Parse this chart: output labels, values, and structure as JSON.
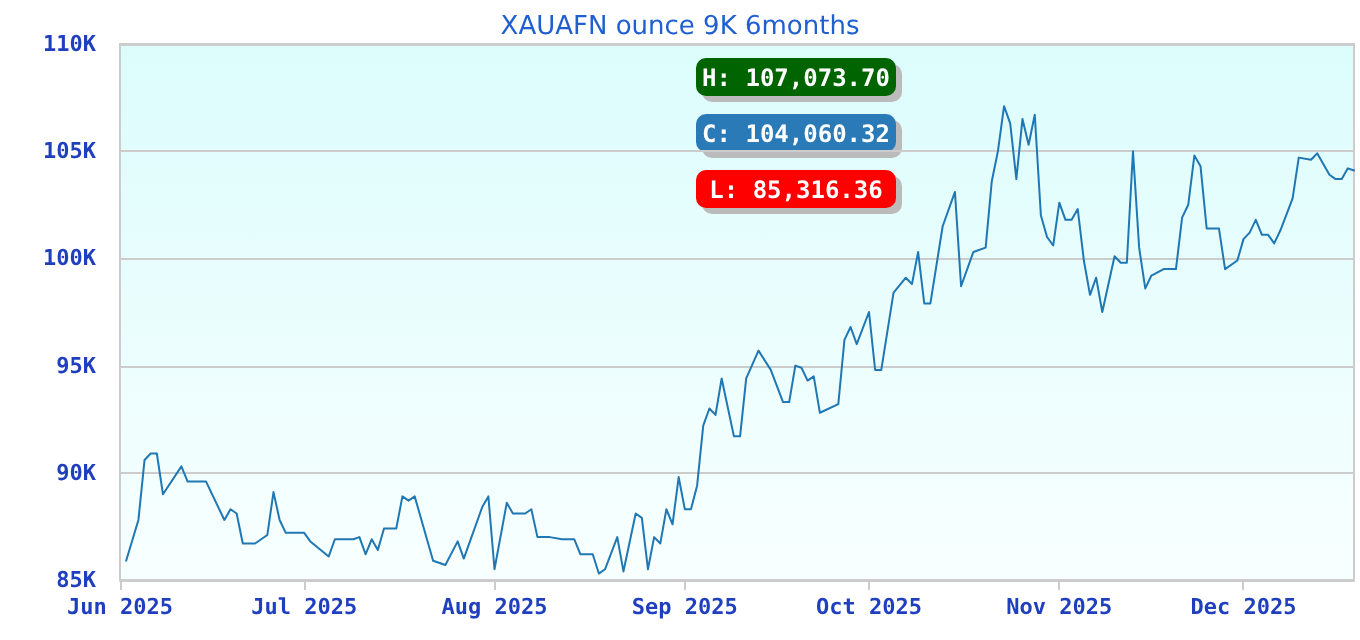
{
  "chart_data": {
    "type": "line",
    "title": "XAUAFN ounce 9K 6months",
    "annotations": [
      "H: 107,073.70",
      "C: 104,060.32",
      "L: 85,316.36"
    ],
    "xlim": [
      "2025-06-01",
      "2025-12-19"
    ],
    "xticks": [
      {
        "value": "2025-06-01",
        "label": "Jun 2025"
      },
      {
        "value": "2025-07-01",
        "label": "Jul 2025"
      },
      {
        "value": "2025-08-01",
        "label": "Aug 2025"
      },
      {
        "value": "2025-09-01",
        "label": "Sep 2025"
      },
      {
        "value": "2025-10-01",
        "label": "Oct 2025"
      },
      {
        "value": "2025-11-01",
        "label": "Nov 2025"
      },
      {
        "value": "2025-12-01",
        "label": "Dec 2025"
      }
    ],
    "ylim": [
      85000,
      110000
    ],
    "yticks": [
      {
        "value": 85000,
        "label": "85K"
      },
      {
        "value": 90000,
        "label": "90K"
      },
      {
        "value": 95000,
        "label": "95K"
      },
      {
        "value": 100000,
        "label": "100K"
      },
      {
        "value": 105000,
        "label": "105K"
      },
      {
        "value": 110000,
        "label": "110K"
      }
    ],
    "grid": "y",
    "marker": "none",
    "line_style": "solid",
    "x": [
      "2025-06-02",
      "2025-06-04",
      "2025-06-05",
      "2025-06-06",
      "2025-06-07",
      "2025-06-08",
      "2025-06-11",
      "2025-06-12",
      "2025-06-15",
      "2025-06-18",
      "2025-06-19",
      "2025-06-20",
      "2025-06-21",
      "2025-06-23",
      "2025-06-25",
      "2025-06-26",
      "2025-06-27",
      "2025-06-28",
      "2025-07-01",
      "2025-07-02",
      "2025-07-05",
      "2025-07-06",
      "2025-07-09",
      "2025-07-10",
      "2025-07-11",
      "2025-07-12",
      "2025-07-13",
      "2025-07-14",
      "2025-07-16",
      "2025-07-17",
      "2025-07-18",
      "2025-07-19",
      "2025-07-22",
      "2025-07-24",
      "2025-07-26",
      "2025-07-27",
      "2025-07-30",
      "2025-07-31",
      "2025-08-01",
      "2025-08-03",
      "2025-08-04",
      "2025-08-06",
      "2025-08-07",
      "2025-08-08",
      "2025-08-10",
      "2025-08-12",
      "2025-08-14",
      "2025-08-15",
      "2025-08-17",
      "2025-08-18",
      "2025-08-19",
      "2025-08-21",
      "2025-08-22",
      "2025-08-24",
      "2025-08-25",
      "2025-08-26",
      "2025-08-27",
      "2025-08-28",
      "2025-08-29",
      "2025-08-30",
      "2025-08-31",
      "2025-09-01",
      "2025-09-02",
      "2025-09-03",
      "2025-09-04",
      "2025-09-05",
      "2025-09-06",
      "2025-09-07",
      "2025-09-09",
      "2025-09-10",
      "2025-09-11",
      "2025-09-13",
      "2025-09-15",
      "2025-09-17",
      "2025-09-18",
      "2025-09-19",
      "2025-09-20",
      "2025-09-21",
      "2025-09-22",
      "2025-09-23",
      "2025-09-26",
      "2025-09-27",
      "2025-09-28",
      "2025-09-29",
      "2025-10-01",
      "2025-10-02",
      "2025-10-03",
      "2025-10-05",
      "2025-10-07",
      "2025-10-08",
      "2025-10-09",
      "2025-10-10",
      "2025-10-11",
      "2025-10-13",
      "2025-10-15",
      "2025-10-16",
      "2025-10-18",
      "2025-10-20",
      "2025-10-21",
      "2025-10-22",
      "2025-10-23",
      "2025-10-24",
      "2025-10-25",
      "2025-10-26",
      "2025-10-27",
      "2025-10-28",
      "2025-10-29",
      "2025-10-30",
      "2025-10-31",
      "2025-11-01",
      "2025-11-02",
      "2025-11-03",
      "2025-11-04",
      "2025-11-05",
      "2025-11-06",
      "2025-11-07",
      "2025-11-08",
      "2025-11-10",
      "2025-11-11",
      "2025-11-12",
      "2025-11-13",
      "2025-11-14",
      "2025-11-15",
      "2025-11-16",
      "2025-11-18",
      "2025-11-20",
      "2025-11-21",
      "2025-11-22",
      "2025-11-23",
      "2025-11-24",
      "2025-11-25",
      "2025-11-27",
      "2025-11-28",
      "2025-11-30",
      "2025-12-01",
      "2025-12-02",
      "2025-12-03",
      "2025-12-04",
      "2025-12-05",
      "2025-12-06",
      "2025-12-07",
      "2025-12-09",
      "2025-12-10",
      "2025-12-12",
      "2025-12-13",
      "2025-12-15",
      "2025-12-16",
      "2025-12-17",
      "2025-12-18",
      "2025-12-19"
    ],
    "series": [
      {
        "color": "#1f77b4",
        "values": [
          85900,
          87800,
          90600,
          90900,
          90900,
          89000,
          90300,
          89600,
          89600,
          87800,
          88300,
          88100,
          86700,
          86700,
          87100,
          89100,
          87800,
          87200,
          87200,
          86800,
          86100,
          86900,
          86900,
          87000,
          86200,
          86900,
          86400,
          87400,
          87400,
          88900,
          88700,
          88900,
          85900,
          85700,
          86800,
          86000,
          88400,
          88900,
          85500,
          88600,
          88100,
          88100,
          88300,
          87000,
          87000,
          86900,
          86900,
          86200,
          86200,
          85300,
          85500,
          87000,
          85400,
          88100,
          87900,
          85500,
          87000,
          86700,
          88300,
          87600,
          89800,
          88300,
          88300,
          89400,
          92200,
          93000,
          92700,
          94400,
          91700,
          91700,
          94400,
          95700,
          94800,
          93300,
          93300,
          95000,
          94900,
          94300,
          94500,
          92800,
          93200,
          96200,
          96800,
          96000,
          97500,
          94800,
          94800,
          98400,
          99100,
          98800,
          100300,
          97900,
          97900,
          101500,
          103100,
          98700,
          100300,
          100500,
          103600,
          105000,
          107100,
          106300,
          103700,
          106500,
          105300,
          106700,
          102000,
          101000,
          100600,
          102600,
          101800,
          101800,
          102300,
          99900,
          98300,
          99100,
          97500,
          100100,
          99800,
          99800,
          105000,
          100500,
          98600,
          99200,
          99500,
          99500,
          101900,
          102500,
          104800,
          104300,
          101400,
          101400,
          99500,
          99900,
          100900,
          101200,
          101800,
          101100,
          101100,
          100700,
          101300,
          102800,
          104700,
          104600,
          104900,
          103900,
          103700,
          103700,
          104200,
          104100
        ]
      }
    ]
  }
}
